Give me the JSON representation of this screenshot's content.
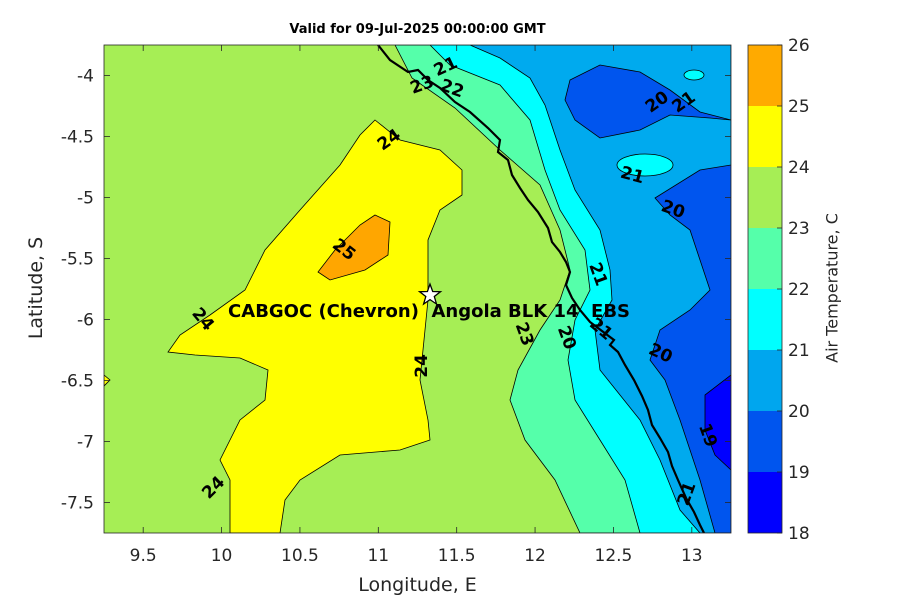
{
  "title": "Valid for 09-Jul-2025 00:00:00 GMT",
  "map": {
    "xlabel": "Longitude, E",
    "ylabel": "Latitude, S",
    "xlim": [
      9.25,
      13.25
    ],
    "ylim": [
      -7.75,
      -3.75
    ],
    "xticks": [
      "9.5",
      "10",
      "10.5",
      "11",
      "11.5",
      "12",
      "12.5",
      "13"
    ],
    "yticks": [
      "-4",
      "-4.5",
      "-5",
      "-5.5",
      "-6",
      "-6.5",
      "-7",
      "-7.5"
    ],
    "site": {
      "label": "CABGOC (Chevron)  Angola BLK 14  EBS",
      "lon": 11.33,
      "lat": -5.8,
      "marker": "star-icon"
    },
    "contour_labels": [
      {
        "text": "21",
        "lon": 11.43,
        "lat": -3.93,
        "angle": 25
      },
      {
        "text": "23",
        "lon": 11.28,
        "lat": -4.08,
        "angle": 20
      },
      {
        "text": "22",
        "lon": 11.47,
        "lat": -4.11,
        "angle": -20
      },
      {
        "text": "24",
        "lon": 11.07,
        "lat": -4.53,
        "angle": 35
      },
      {
        "text": "25",
        "lon": 10.78,
        "lat": -5.43,
        "angle": -38
      },
      {
        "text": "24",
        "lon": 9.88,
        "lat": -6.0,
        "angle": -50
      },
      {
        "text": "24",
        "lon": 11.28,
        "lat": -6.38,
        "angle": 90
      },
      {
        "text": "24",
        "lon": 9.95,
        "lat": -7.38,
        "angle": 45
      },
      {
        "text": "23",
        "lon": 11.93,
        "lat": -6.12,
        "angle": -70
      },
      {
        "text": "20",
        "lon": 12.2,
        "lat": -6.15,
        "angle": -70
      },
      {
        "text": "21",
        "lon": 12.4,
        "lat": -5.63,
        "angle": -70
      },
      {
        "text": "21",
        "lon": 12.42,
        "lat": -6.08,
        "angle": -40
      },
      {
        "text": "20",
        "lon": 12.78,
        "lat": -4.22,
        "angle": 35
      },
      {
        "text": "21",
        "lon": 12.95,
        "lat": -4.22,
        "angle": 35
      },
      {
        "text": "21",
        "lon": 12.62,
        "lat": -4.82,
        "angle": -15
      },
      {
        "text": "20",
        "lon": 12.88,
        "lat": -5.1,
        "angle": -20
      },
      {
        "text": "20",
        "lon": 12.8,
        "lat": -6.28,
        "angle": -25
      },
      {
        "text": "19",
        "lon": 13.1,
        "lat": -6.95,
        "angle": -70
      },
      {
        "text": "21",
        "lon": 12.97,
        "lat": -7.43,
        "angle": 70
      }
    ]
  },
  "colorbar": {
    "label": "Air Temperature, C",
    "tick_labels": [
      "18",
      "19",
      "20",
      "21",
      "22",
      "23",
      "24",
      "25",
      "26"
    ],
    "levels": [
      18,
      19,
      20,
      21,
      22,
      23,
      24,
      25,
      26
    ],
    "colors": [
      "#0000ff",
      "#0055ee",
      "#00a6ee",
      "#00ffff",
      "#55ffaa",
      "#a6ee55",
      "#ffff00",
      "#ffaa00",
      "#ff5500"
    ]
  },
  "colors": {
    "above_23": "#a6ee55",
    "range_24_25": "#ffff00",
    "range_25_26": "#ffa600",
    "range_22_23": "#55ffaa",
    "range_21_22": "#00ffff",
    "range_20_21": "#00aaee",
    "range_19_20": "#0055ee",
    "range_18_19": "#0000ff"
  }
}
